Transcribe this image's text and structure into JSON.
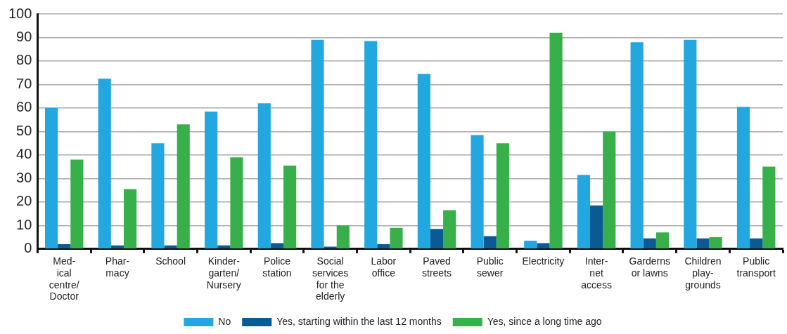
{
  "chart_data": {
    "type": "bar",
    "categories": [
      "Med-\nical\ncentre/\nDoctor",
      "Phar-\nmacy",
      "School",
      "Kinder-\ngarten/\nNursery",
      "Police\nstation",
      "Social\nservices\nfor the\nelderly",
      "Labor\noffice",
      "Paved\nstreets",
      "Public\nsewer",
      "Electricity",
      "Inter-\nnet\naccess",
      "Garderns\nor lawns",
      "Children\nplay-\ngrounds",
      "Public\ntransport"
    ],
    "series": [
      {
        "name": "No",
        "color": "#23a7e0",
        "values": [
          60,
          72.5,
          45,
          58.5,
          62,
          89,
          88.5,
          74.5,
          48.5,
          3.5,
          31.5,
          88,
          89,
          60.5
        ]
      },
      {
        "name": "Yes, starting within the last 12 months",
        "color": "#0b5a94",
        "values": [
          2,
          1.5,
          1.5,
          1.5,
          2.5,
          1,
          2,
          8.5,
          5.5,
          2.5,
          18.5,
          4.5,
          4.5,
          4.5
        ]
      },
      {
        "name": "Yes, since a long time ago",
        "color": "#38b04a",
        "values": [
          38,
          25.5,
          53,
          39,
          35.5,
          10,
          9,
          16.5,
          45,
          92,
          50,
          7,
          5,
          35
        ]
      }
    ],
    "ylim": [
      0,
      100
    ],
    "yticks": [
      0,
      10,
      20,
      30,
      40,
      50,
      60,
      70,
      80,
      90,
      100
    ],
    "grid": "y",
    "legend": "bottom"
  }
}
